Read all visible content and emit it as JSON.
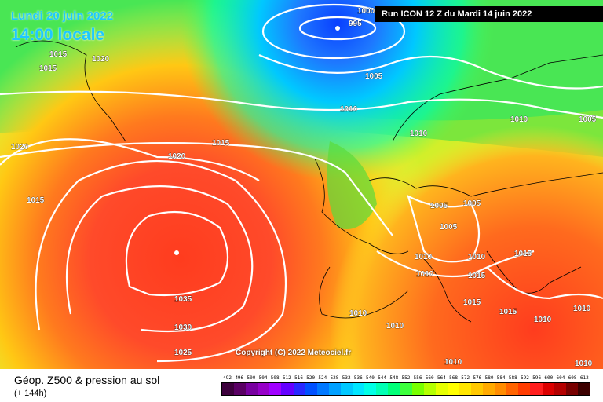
{
  "header": {
    "date_label": "Lundi 20 juin 2022",
    "time_label": "14:00 locale",
    "run_label": "Run ICON 12 Z du Mardi 14 juin 2022"
  },
  "map": {
    "copyright": "Copyright (C) 2022 Meteociel.fr",
    "isobar_labels": [
      "995",
      "1000",
      "1005",
      "1010",
      "1015",
      "1020",
      "1025",
      "1030",
      "1035"
    ],
    "features": [
      "low-pressure-center-995",
      "high-pressure-center-1035"
    ]
  },
  "footer": {
    "product_title": "Géop. Z500 & pression au sol",
    "product_subtitle": "(+ 144h)",
    "scale": {
      "labels": [
        "492",
        "496",
        "500",
        "504",
        "508",
        "512",
        "516",
        "520",
        "524",
        "528",
        "532",
        "536",
        "540",
        "544",
        "548",
        "552",
        "556",
        "560",
        "564",
        "568",
        "572",
        "576",
        "580",
        "584",
        "588",
        "592",
        "596",
        "600",
        "604",
        "608",
        "612"
      ],
      "colors": [
        "#3c003c",
        "#5a0064",
        "#7800a0",
        "#9600c8",
        "#a000ff",
        "#6400ff",
        "#2828ff",
        "#0050ff",
        "#0078ff",
        "#00a0ff",
        "#00c8ff",
        "#00e6ff",
        "#00ffe6",
        "#00ffb4",
        "#00ff78",
        "#3cff3c",
        "#78ff00",
        "#b4ff00",
        "#e6ff00",
        "#ffff00",
        "#ffe600",
        "#ffc800",
        "#ffaa00",
        "#ff8c00",
        "#ff6400",
        "#ff3c00",
        "#ff1e1e",
        "#dc0000",
        "#b40000",
        "#780000",
        "#3c0000"
      ]
    }
  }
}
